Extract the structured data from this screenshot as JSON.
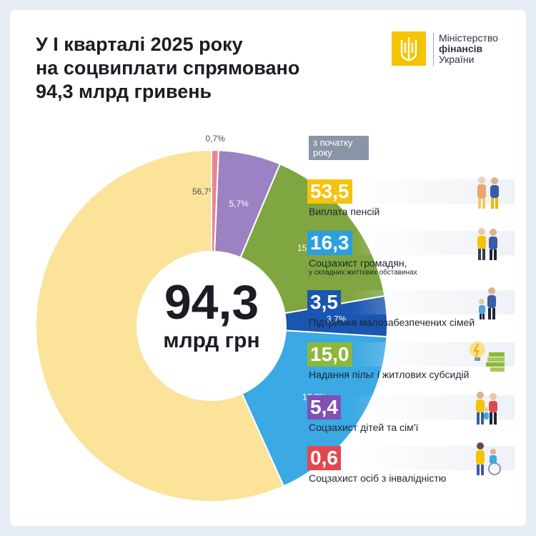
{
  "title": {
    "line1": "У І кварталі 2025 року",
    "line2": "на соцвиплати спрямовано",
    "line3": "94,3 млрд гривень"
  },
  "logo": {
    "line1": "Міністерство",
    "line2": "фінансів",
    "line3": "України",
    "color": "#f5c400"
  },
  "ytd_tag": {
    "line1": "з початку",
    "line2": "року"
  },
  "center": {
    "value": "94,3",
    "unit": "млрд грн"
  },
  "chart_data": {
    "type": "pie",
    "total": 94.3,
    "unit": "млрд грн",
    "categories": [
      "Виплата пенсій",
      "Соцзахист громадян,",
      "Підтримка малозабезпечених сімей",
      "Надання пільг і житлових субсидій",
      "Соцзахист дітей та сім'ї",
      "Соцзахист осіб з інвалідністю"
    ],
    "values": [
      53.5,
      16.3,
      3.5,
      15.0,
      5.4,
      0.6
    ],
    "value_labels": [
      "53,5",
      "16,3",
      "3,5",
      "15,0",
      "5,4",
      "0,6"
    ],
    "percent_labels": [
      "56,7%",
      "17,3%",
      "3,7%",
      "15,9%",
      "5,7%",
      "0,7%"
    ],
    "percents": [
      56.7,
      17.3,
      3.7,
      15.9,
      5.7,
      0.7
    ],
    "colors": [
      "#fbe39a",
      "#3aa9e4",
      "#1a55b0",
      "#7fa640",
      "#9b82c2",
      "#e8868f"
    ],
    "label_colors": [
      "#f5c20f",
      "#2b9fe0",
      "#1a55b0",
      "#8bb83a",
      "#8250b5",
      "#e04a4f"
    ],
    "legend_placement": "right"
  },
  "legend": [
    {
      "value": "53,5",
      "label": "Виплата пенсій",
      "sublabel": ""
    },
    {
      "value": "16,3",
      "label": "Соцзахист громадян,",
      "sublabel": "у складних життєвих обставинах"
    },
    {
      "value": "3,5",
      "label": "Підтримка малозабезпечених сімей",
      "sublabel": ""
    },
    {
      "value": "15,0",
      "label": "Надання пільг і житлових субсидій",
      "sublabel": ""
    },
    {
      "value": "5,4",
      "label": "Соцзахист дітей та сім'ї",
      "sublabel": ""
    },
    {
      "value": "0,6",
      "label": "Соцзахист осіб з інвалідністю",
      "sublabel": ""
    }
  ],
  "icons": [
    "elderly-couple-icon",
    "family-support-icon",
    "parent-child-icon",
    "lightbulb-money-icon",
    "family-group-icon",
    "wheelchair-icon"
  ]
}
